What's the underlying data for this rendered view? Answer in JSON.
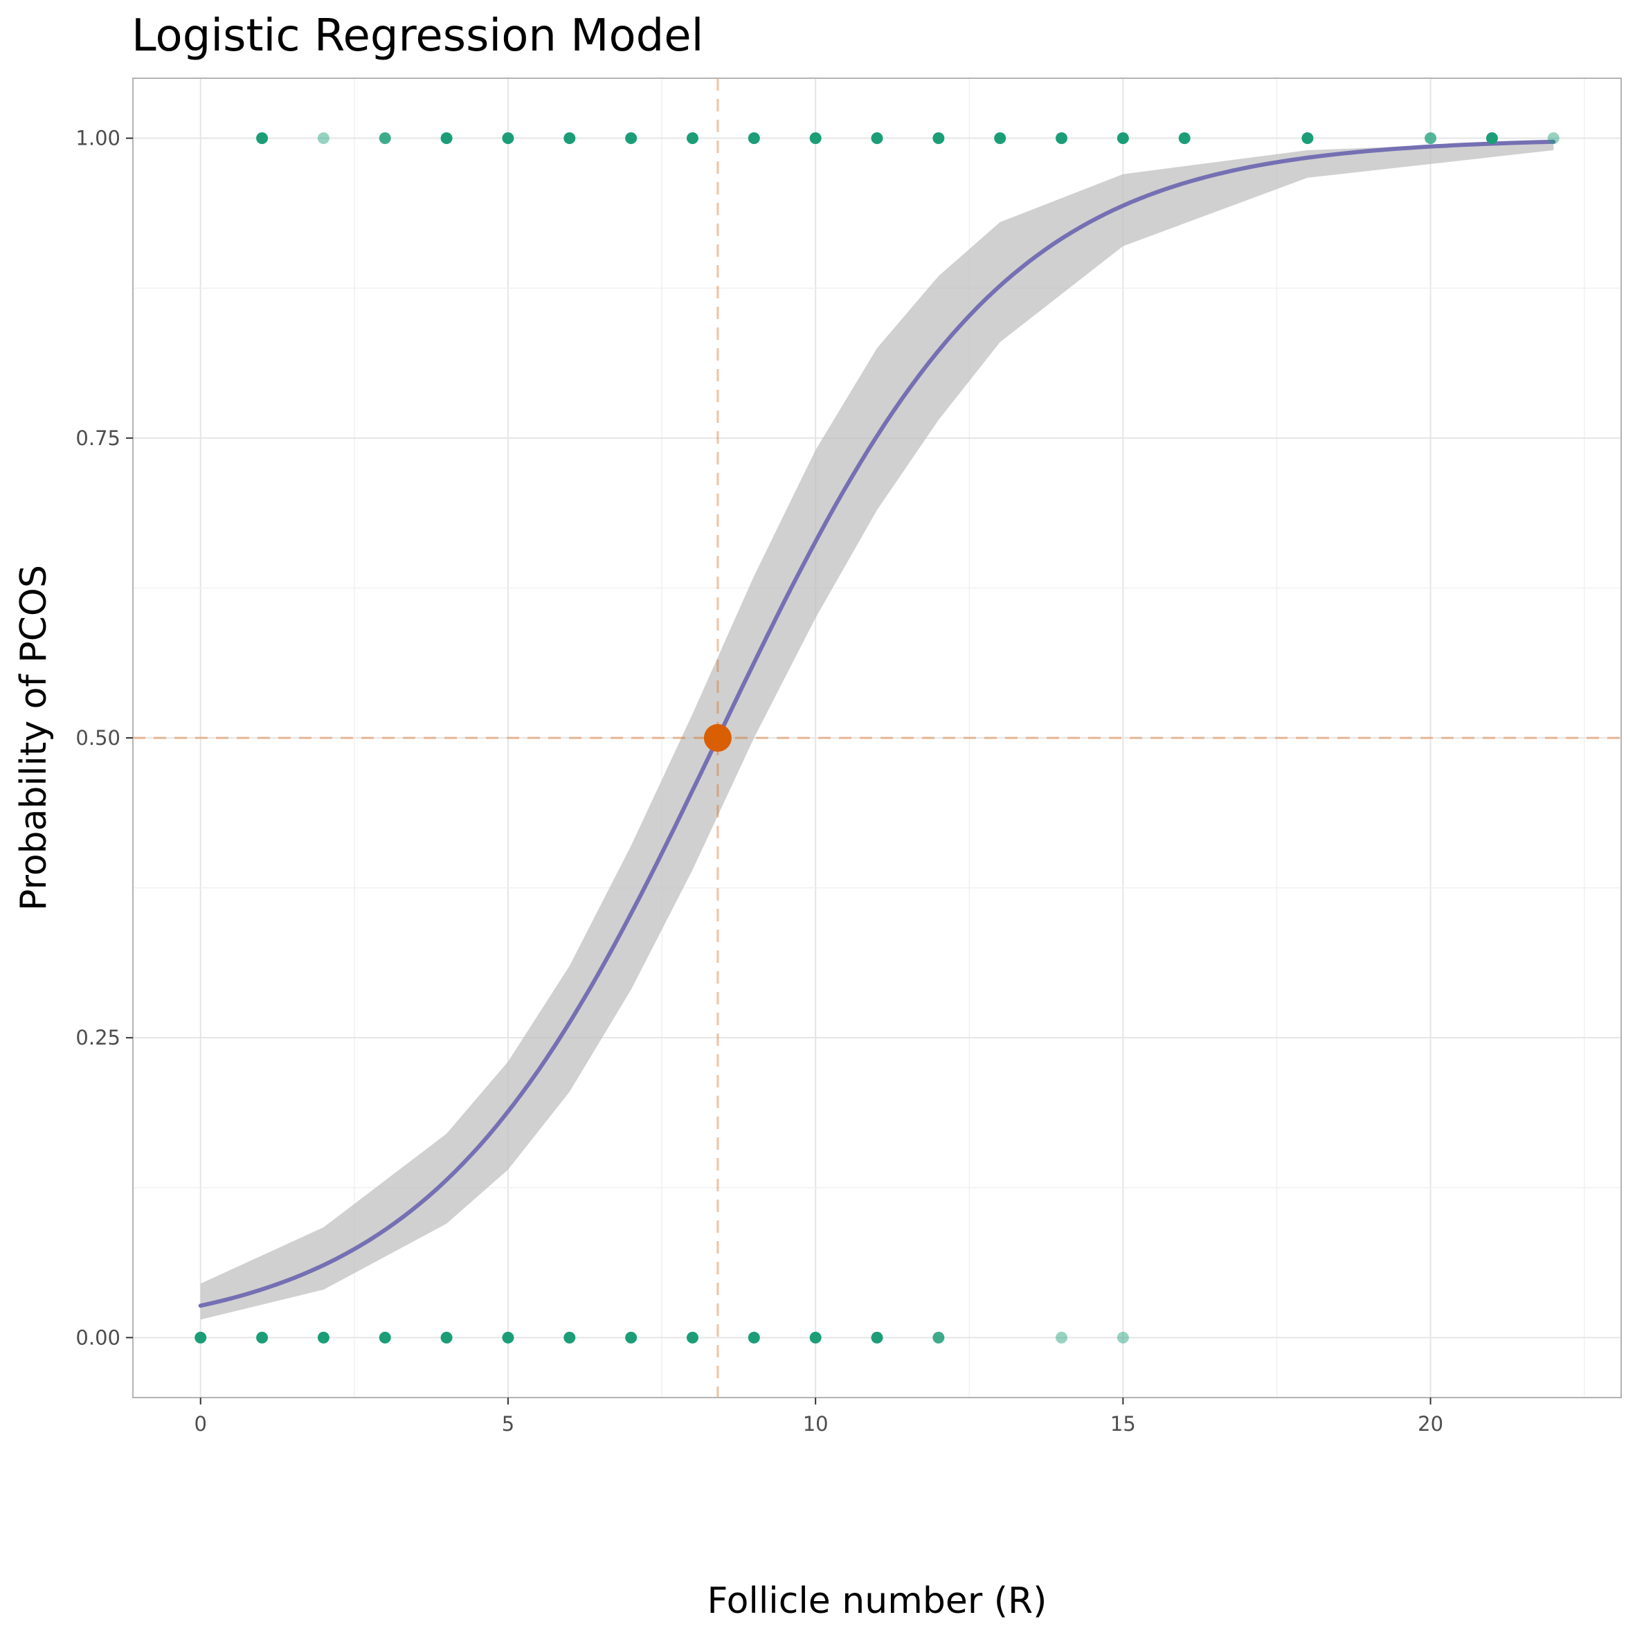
{
  "chart_data": {
    "type": "scatter",
    "title": "Logistic Regression Model",
    "xlabel": "Follicle number (R)",
    "ylabel": "Probability of PCOS",
    "xlim": [
      -1.1,
      23.1
    ],
    "ylim": [
      -0.05,
      1.05
    ],
    "x_ticks": [
      0,
      5,
      10,
      15,
      20
    ],
    "x_tick_labels": [
      "0",
      "5",
      "10",
      "15",
      "20"
    ],
    "y_ticks": [
      0,
      0.25,
      0.5,
      0.75,
      1.0
    ],
    "y_tick_labels": [
      "0.00",
      "0.25",
      "0.50",
      "0.75",
      "1.00"
    ],
    "grid": true,
    "colors": {
      "points": "#1b9e77",
      "curve": "#7570b3",
      "band": "#bebebe",
      "threshold": "#d95f02",
      "grid": "#e5e5e5",
      "border": "#b3b3b3"
    },
    "points_y1": [
      {
        "x": 1,
        "y": 1,
        "alpha": 1.0
      },
      {
        "x": 2,
        "y": 1,
        "alpha": 0.45
      },
      {
        "x": 3,
        "y": 1,
        "alpha": 0.85
      },
      {
        "x": 4,
        "y": 1,
        "alpha": 1.0
      },
      {
        "x": 5,
        "y": 1,
        "alpha": 1.0
      },
      {
        "x": 6,
        "y": 1,
        "alpha": 1.0
      },
      {
        "x": 7,
        "y": 1,
        "alpha": 1.0
      },
      {
        "x": 8,
        "y": 1,
        "alpha": 1.0
      },
      {
        "x": 9,
        "y": 1,
        "alpha": 1.0
      },
      {
        "x": 10,
        "y": 1,
        "alpha": 1.0
      },
      {
        "x": 11,
        "y": 1,
        "alpha": 1.0
      },
      {
        "x": 12,
        "y": 1,
        "alpha": 1.0
      },
      {
        "x": 13,
        "y": 1,
        "alpha": 1.0
      },
      {
        "x": 14,
        "y": 1,
        "alpha": 1.0
      },
      {
        "x": 15,
        "y": 1,
        "alpha": 1.0
      },
      {
        "x": 16,
        "y": 1,
        "alpha": 1.0
      },
      {
        "x": 18,
        "y": 1,
        "alpha": 1.0
      },
      {
        "x": 20,
        "y": 1,
        "alpha": 0.75
      },
      {
        "x": 21,
        "y": 1,
        "alpha": 1.0
      },
      {
        "x": 22,
        "y": 1,
        "alpha": 0.45
      }
    ],
    "points_y0": [
      {
        "x": 0,
        "y": 0,
        "alpha": 1.0
      },
      {
        "x": 1,
        "y": 0,
        "alpha": 1.0
      },
      {
        "x": 2,
        "y": 0,
        "alpha": 1.0
      },
      {
        "x": 3,
        "y": 0,
        "alpha": 1.0
      },
      {
        "x": 4,
        "y": 0,
        "alpha": 1.0
      },
      {
        "x": 5,
        "y": 0,
        "alpha": 1.0
      },
      {
        "x": 6,
        "y": 0,
        "alpha": 1.0
      },
      {
        "x": 7,
        "y": 0,
        "alpha": 1.0
      },
      {
        "x": 8,
        "y": 0,
        "alpha": 1.0
      },
      {
        "x": 9,
        "y": 0,
        "alpha": 1.0
      },
      {
        "x": 10,
        "y": 0,
        "alpha": 1.0
      },
      {
        "x": 11,
        "y": 0,
        "alpha": 1.0
      },
      {
        "x": 12,
        "y": 0,
        "alpha": 0.85
      },
      {
        "x": 14,
        "y": 0,
        "alpha": 0.45
      },
      {
        "x": 15,
        "y": 0,
        "alpha": 0.45
      }
    ],
    "fitted_curve": {
      "x_range": [
        0,
        22
      ],
      "intercept": -3.6,
      "slope": 0.428
    },
    "confidence_band": [
      {
        "x": 0,
        "lower": 0.015,
        "upper": 0.045
      },
      {
        "x": 2,
        "lower": 0.04,
        "upper": 0.092
      },
      {
        "x": 4,
        "lower": 0.095,
        "upper": 0.17
      },
      {
        "x": 5,
        "lower": 0.14,
        "upper": 0.23
      },
      {
        "x": 6,
        "lower": 0.205,
        "upper": 0.31
      },
      {
        "x": 7,
        "lower": 0.29,
        "upper": 0.41
      },
      {
        "x": 8,
        "lower": 0.39,
        "upper": 0.52
      },
      {
        "x": 9,
        "lower": 0.5,
        "upper": 0.635
      },
      {
        "x": 10,
        "lower": 0.6,
        "upper": 0.74
      },
      {
        "x": 11,
        "lower": 0.69,
        "upper": 0.825
      },
      {
        "x": 12,
        "lower": 0.765,
        "upper": 0.885
      },
      {
        "x": 13,
        "lower": 0.83,
        "upper": 0.93
      },
      {
        "x": 15,
        "lower": 0.91,
        "upper": 0.97
      },
      {
        "x": 18,
        "lower": 0.967,
        "upper": 0.99
      },
      {
        "x": 22,
        "lower": 0.99,
        "upper": 0.998
      }
    ],
    "threshold": {
      "x": 8.41,
      "y": 0.5
    }
  }
}
